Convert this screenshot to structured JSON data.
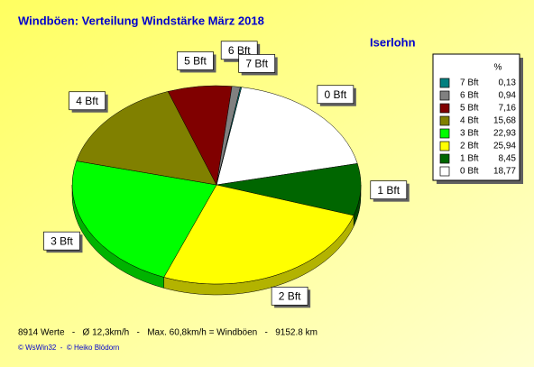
{
  "chart_data": {
    "type": "pie",
    "title": "Windböen: Verteilung Windstärke  März 2018",
    "subtitle": "Iserlohn",
    "legend_header": "%",
    "categories": [
      "0 Bft",
      "1 Bft",
      "2 Bft",
      "3 Bft",
      "4 Bft",
      "5 Bft",
      "6 Bft",
      "7 Bft"
    ],
    "values": [
      18.77,
      8.45,
      25.94,
      22.93,
      15.68,
      7.16,
      0.94,
      0.13
    ],
    "value_labels": [
      "18,77",
      "8,45",
      "25,94",
      "22,93",
      "15,68",
      "7,16",
      "0,94",
      "0,13"
    ],
    "colors": [
      "#ffffff",
      "#006600",
      "#ffff00",
      "#00ff00",
      "#808000",
      "#800000",
      "#808080",
      "#008080"
    ],
    "notes": [
      "8914 Werte   -   Ø 12,3km/h   -   Max. 60,8km/h = Windböen   -   9152.8 km",
      "© WsWin32  -  © Heiko Blödorn"
    ]
  }
}
